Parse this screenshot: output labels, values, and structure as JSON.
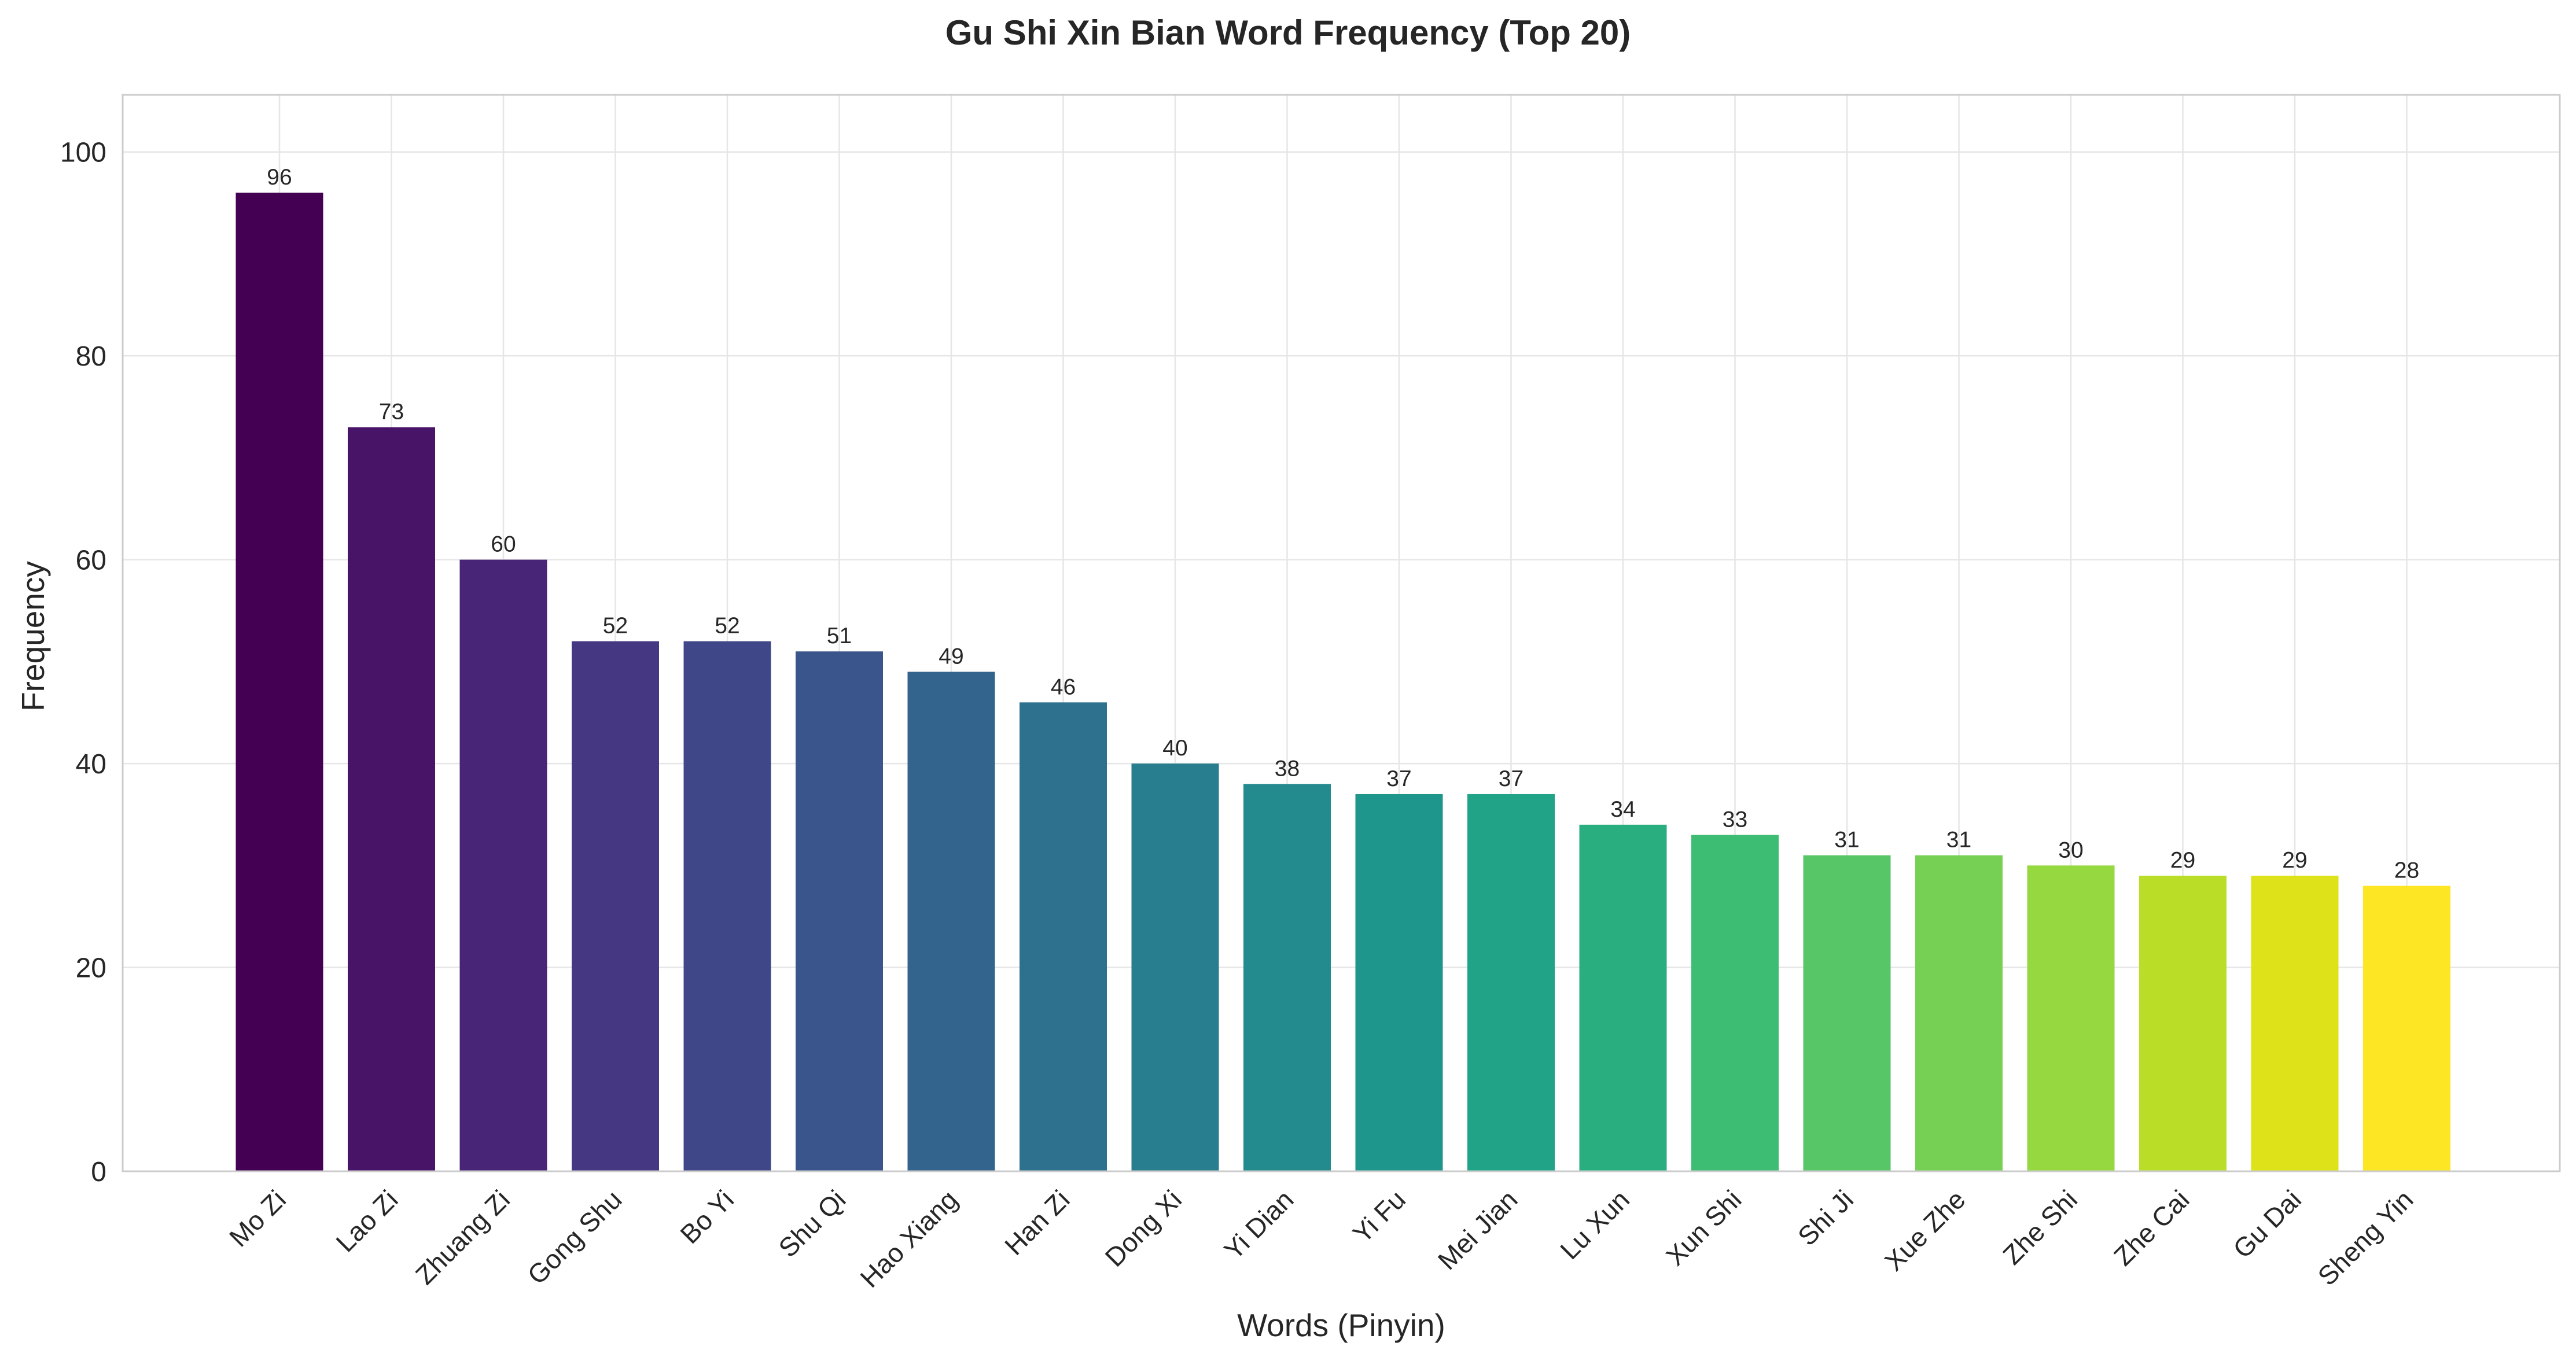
{
  "chart_data": {
    "type": "bar",
    "title": "Gu Shi Xin Bian Word Frequency (Top 20)",
    "xlabel": "Words (Pinyin)",
    "ylabel": "Frequency",
    "categories": [
      "Mo Zi",
      "Lao Zi",
      "Zhuang Zi",
      "Gong Shu",
      "Bo Yi",
      "Shu Qi",
      "Hao Xiang",
      "Han Zi",
      "Dong Xi",
      "Yi Dian",
      "Yi Fu",
      "Mei Jian",
      "Lu Xun",
      "Xun Shi",
      "Shi Ji",
      "Xue Zhe",
      "Zhe Shi",
      "Zhe Cai",
      "Gu Dai",
      "Sheng Yin"
    ],
    "values": [
      96,
      73,
      60,
      52,
      52,
      51,
      49,
      46,
      40,
      38,
      37,
      37,
      34,
      33,
      31,
      31,
      30,
      29,
      29,
      28
    ],
    "data_labels": [
      "96",
      "73",
      "60",
      "52",
      "52",
      "51",
      "49",
      "46",
      "40",
      "38",
      "37",
      "37",
      "34",
      "33",
      "31",
      "31",
      "30",
      "29",
      "29",
      "28"
    ],
    "yticks": [
      0,
      20,
      40,
      60,
      80,
      100
    ],
    "ylim": [
      0,
      105.6
    ],
    "grid": true,
    "colors": [
      "#440154",
      "#481467",
      "#482576",
      "#453781",
      "#3f4788",
      "#39558c",
      "#32648e",
      "#2d718e",
      "#287d8e",
      "#238a8d",
      "#1f968b",
      "#20a386",
      "#29af7f",
      "#3dbc74",
      "#56c667",
      "#75d054",
      "#95d840",
      "#bade28",
      "#dde318",
      "#fde725"
    ]
  }
}
